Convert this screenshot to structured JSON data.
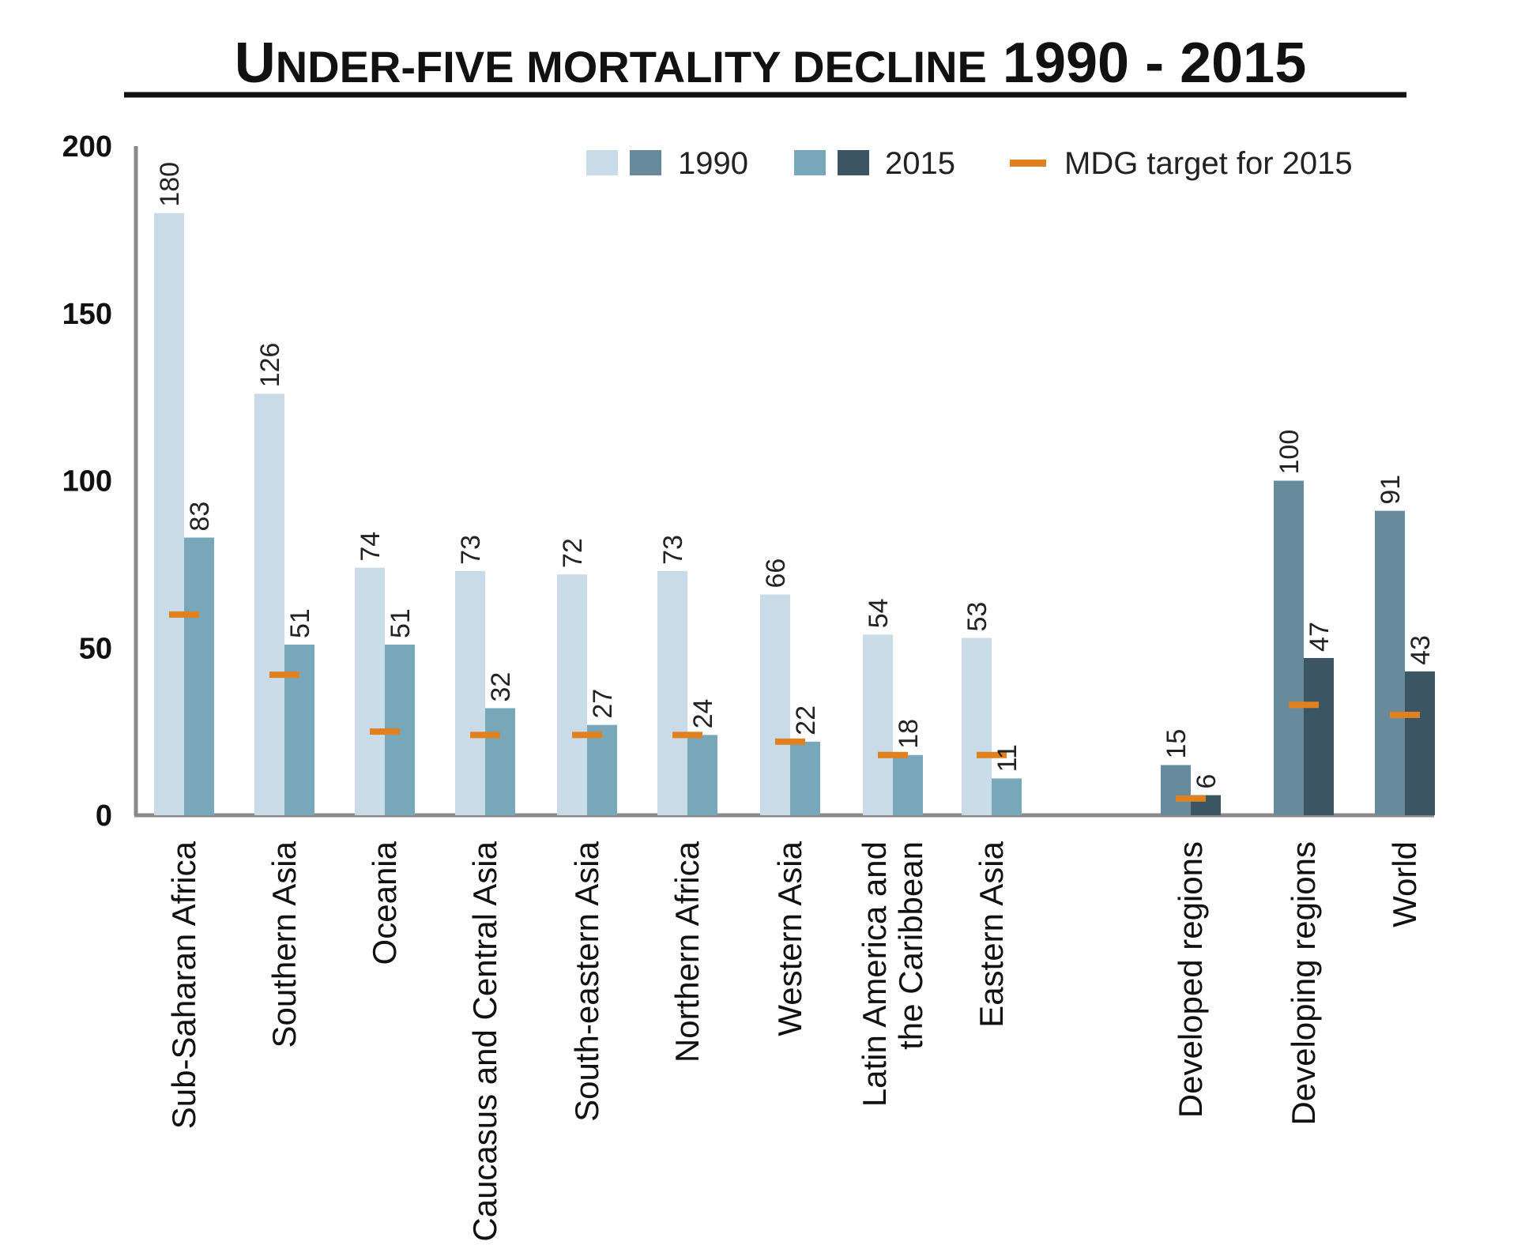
{
  "chart_data": {
    "type": "bar",
    "title": "Under-five mortality decline 1990 - 2015",
    "ylim": [
      0,
      200
    ],
    "yticks": [
      0,
      50,
      100,
      150,
      200
    ],
    "grid": false,
    "legend": {
      "placement": "top-right",
      "entries": [
        "1990",
        "2015",
        "MDG target for 2015"
      ]
    },
    "categories": [
      "Sub-Saharan Africa",
      "Southern Asia",
      "Oceania",
      "Caucasus and Central Asia",
      "South-eastern Asia",
      "Northern Africa",
      "Western Asia",
      "Latin America and the Caribbean",
      "Eastern Asia",
      "Developed regions",
      "Developing regions",
      "World"
    ],
    "category_lines": [
      [
        "Sub-Saharan Africa"
      ],
      [
        "Southern Asia"
      ],
      [
        "Oceania"
      ],
      [
        "Caucasus and Central Asia"
      ],
      [
        "South-eastern Asia"
      ],
      [
        "Northern Africa"
      ],
      [
        "Western Asia"
      ],
      [
        "Latin America and",
        "the Caribbean"
      ],
      [
        "Eastern Asia"
      ],
      [
        "Developed regions"
      ],
      [
        "Developing regions"
      ],
      [
        "World"
      ]
    ],
    "groups": [
      "region",
      "region",
      "region",
      "region",
      "region",
      "region",
      "region",
      "region",
      "region",
      "aggregate",
      "aggregate",
      "aggregate"
    ],
    "series": [
      {
        "name": "1990",
        "values": [
          180,
          126,
          74,
          73,
          72,
          73,
          66,
          54,
          53,
          15,
          100,
          91
        ]
      },
      {
        "name": "2015",
        "values": [
          83,
          51,
          51,
          32,
          27,
          24,
          22,
          18,
          11,
          6,
          47,
          43
        ]
      },
      {
        "name": "MDG target for 2015",
        "values": [
          60,
          42,
          25,
          24,
          24,
          24,
          22,
          18,
          18,
          5,
          33,
          30
        ]
      }
    ],
    "colors": {
      "region_1990": "#c9dbe6",
      "region_2015": "#78a7b9",
      "aggregate_1990": "#678b9d",
      "aggregate_2015": "#3b5562",
      "target": "#e0801f",
      "axis": "#8a8a8a"
    }
  }
}
